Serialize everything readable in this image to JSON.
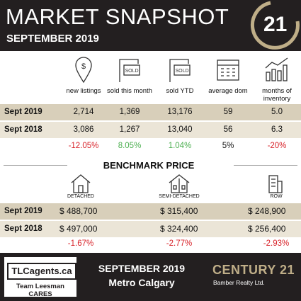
{
  "header": {
    "title": "MARKET SNAPSHOT",
    "subtitle": "SEPTEMBER 2019",
    "logo": "21"
  },
  "stats": {
    "columns": [
      "new listings",
      "sold this month",
      "sold YTD",
      "average dom",
      "months of inventory"
    ],
    "rows": [
      {
        "label": "Sept 2019",
        "cells": [
          "2,714",
          "1,369",
          "13,176",
          "59",
          "5.0"
        ]
      },
      {
        "label": "Sept 2018",
        "cells": [
          "3,086",
          "1,267",
          "13,040",
          "56",
          "6.3"
        ]
      }
    ],
    "change": [
      "-12.05%",
      "8.05%",
      "1.04%",
      "5%",
      "-20%"
    ]
  },
  "benchmark": {
    "title": "BENCHMARK PRICE",
    "columns": [
      "DETACHED",
      "SEMI-DETACHED",
      "ROW"
    ],
    "rows": [
      {
        "label": "Sept 2019",
        "cells": [
          "$ 488,700",
          "$ 315,400",
          "$ 248,900"
        ]
      },
      {
        "label": "Sept 2018",
        "cells": [
          "$ 497,000",
          "$ 324,400",
          "$ 256,400"
        ]
      }
    ],
    "change": [
      "-1.67%",
      "-2.77%",
      "-2.93%"
    ]
  },
  "footer": {
    "agent": "TLCagents.ca",
    "team": "Team Leesman CARES",
    "month": "SEPTEMBER 2019",
    "area": "Metro Calgary",
    "brand": "CENTURY 21",
    "office": "Bamber Realty Ltd."
  }
}
